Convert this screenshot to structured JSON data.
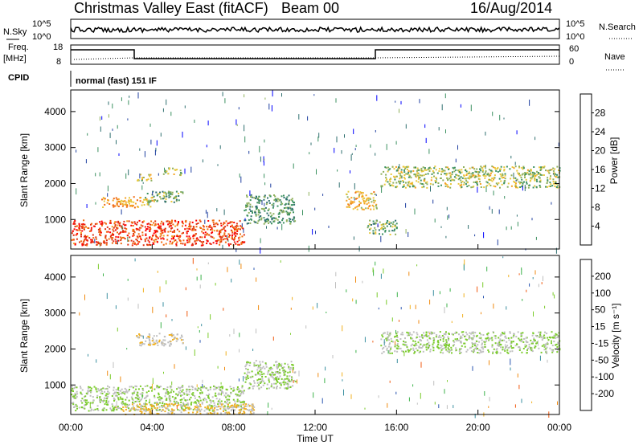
{
  "header": {
    "title": "Christmas Valley East (fitACF)",
    "beam": "Beam 00",
    "date": "16/Aug/2014"
  },
  "top_panels": {
    "nsky_label": "N.Sky",
    "nsky_ticks": [
      "10^5",
      "10^0"
    ],
    "nsearch_label": "N.Search",
    "nsearch_ticks": [
      "10^5",
      "10^0"
    ],
    "freq_label_line1": "Freq.",
    "freq_label_line2": "[MHz]",
    "freq_ticks": [
      "18",
      "8"
    ],
    "nave_label": "Nave",
    "nave_ticks": [
      "60",
      "0"
    ],
    "cpid_label": "CPID",
    "cpid_text": "normal (fast) 151 IF"
  },
  "chart_data": [
    {
      "type": "heatmap",
      "name": "power",
      "ylabel": "Slant Range [km]",
      "xlabel": "",
      "x_ticks": [
        "00:00",
        "04:00",
        "08:00",
        "12:00",
        "16:00",
        "20:00",
        "00:00"
      ],
      "y_ticks": [
        "4000",
        "3000",
        "2000",
        "1000"
      ],
      "xlim": [
        0,
        24
      ],
      "ylim": [
        180,
        4600
      ],
      "colorbar": {
        "label": "Power [dB]",
        "ticks": [
          "28",
          "24",
          "20",
          "16",
          "12",
          "8",
          "4"
        ],
        "colors": [
          "#0000ff",
          "#1f3fa0",
          "#2f6f6f",
          "#3c9160",
          "#8fb05c",
          "#e8c83c",
          "#f5a020",
          "#f06a10",
          "#e03010",
          "#ff0000"
        ]
      },
      "echo_regions": [
        {
          "t": [
            0.0,
            8.5
          ],
          "r": [
            300,
            1000
          ],
          "level": 26
        },
        {
          "t": [
            1.5,
            4.0
          ],
          "r": [
            1350,
            1650
          ],
          "level": 20
        },
        {
          "t": [
            3.5,
            5.5
          ],
          "r": [
            1500,
            1800
          ],
          "level": 12
        },
        {
          "t": [
            3.2,
            4.0
          ],
          "r": [
            2100,
            2300
          ],
          "level": 16
        },
        {
          "t": [
            4.5,
            5.5
          ],
          "r": [
            2250,
            2450
          ],
          "level": 14
        },
        {
          "t": [
            8.5,
            11.0
          ],
          "r": [
            900,
            1700
          ],
          "level": 10
        },
        {
          "t": [
            13.5,
            15.0
          ],
          "r": [
            1300,
            1800
          ],
          "level": 18
        },
        {
          "t": [
            15.2,
            24.0
          ],
          "r": [
            1900,
            2500
          ],
          "level": 14
        },
        {
          "t": [
            14.5,
            16.0
          ],
          "r": [
            600,
            1000
          ],
          "level": 12
        }
      ]
    },
    {
      "type": "heatmap",
      "name": "velocity",
      "ylabel": "Slant Range [km]",
      "xlabel": "Time UT",
      "x_ticks": [
        "00:00",
        "04:00",
        "08:00",
        "12:00",
        "16:00",
        "20:00",
        "00:00"
      ],
      "y_ticks": [
        "4000",
        "3000",
        "2000",
        "1000"
      ],
      "xlim": [
        0,
        24
      ],
      "ylim": [
        180,
        4600
      ],
      "colorbar": {
        "label": "Velocity [m s⁻¹]",
        "ticks": [
          "200",
          "100",
          "50",
          "15",
          "-15",
          "-50",
          "-100",
          "-200"
        ],
        "colors": [
          "#2020c0",
          "#2a56b0",
          "#3a8fa0",
          "#3cb24a",
          "#7acb2a",
          "#bfbfbf",
          "#f0b020",
          "#f08a10",
          "#f05a10",
          "#ff0000"
        ]
      },
      "echo_regions": [
        {
          "t": [
            0.0,
            8.5
          ],
          "r": [
            300,
            1000
          ],
          "level": 0
        },
        {
          "t": [
            3.2,
            5.5
          ],
          "r": [
            2100,
            2450
          ],
          "level": -50
        },
        {
          "t": [
            8.5,
            11.0
          ],
          "r": [
            900,
            1700
          ],
          "level": 0
        },
        {
          "t": [
            15.2,
            24.0
          ],
          "r": [
            1900,
            2500
          ],
          "level": 0
        },
        {
          "t": [
            2.5,
            9.0
          ],
          "r": [
            200,
            500
          ],
          "level": -60
        }
      ]
    }
  ]
}
